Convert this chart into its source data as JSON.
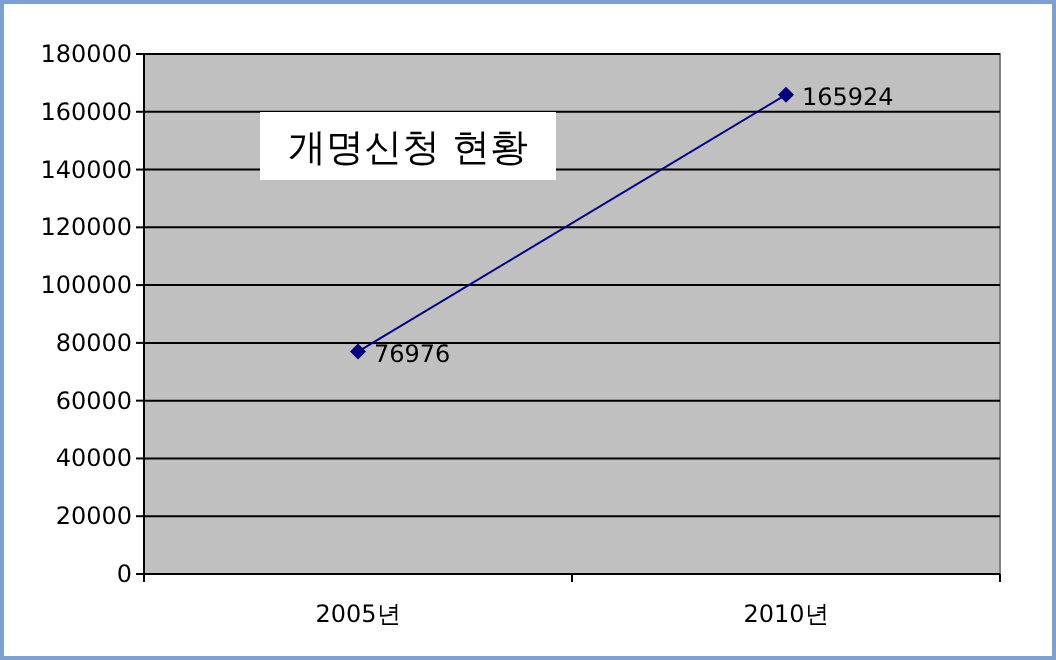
{
  "chart_data": {
    "type": "line",
    "title": "개명신청 현황",
    "categories": [
      "2005년",
      "2010년"
    ],
    "series": [
      {
        "color": "#000080",
        "values": [
          76976,
          165924
        ]
      }
    ],
    "ylim": [
      0,
      180000
    ],
    "yticks": [
      0,
      20000,
      40000,
      60000,
      80000,
      100000,
      120000,
      140000,
      160000,
      180000
    ],
    "grid": "y",
    "marker": "diamond",
    "line_style": "solid",
    "data_labels": true
  }
}
